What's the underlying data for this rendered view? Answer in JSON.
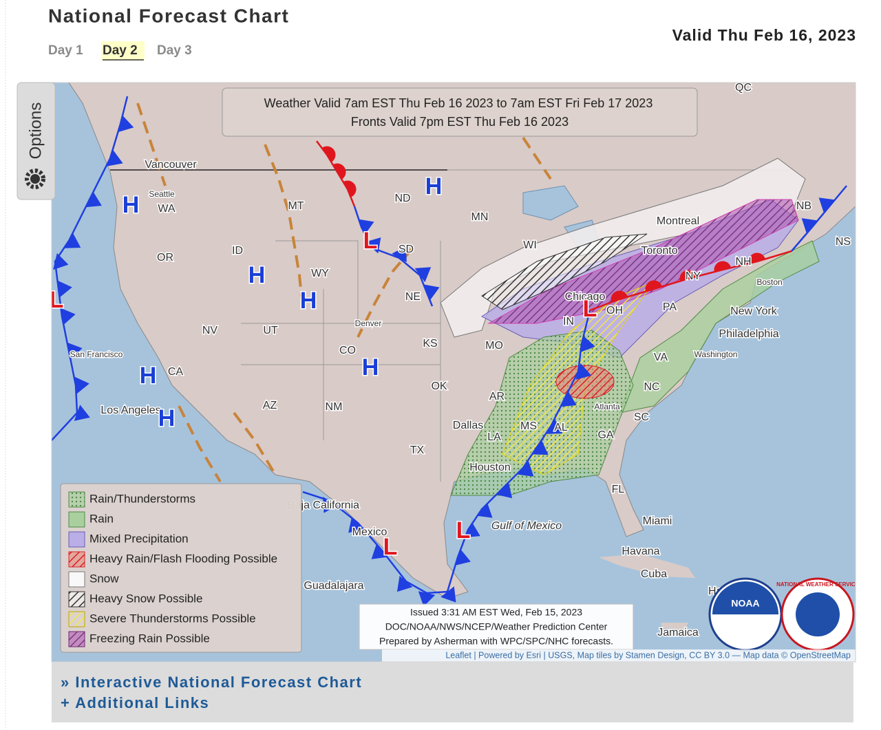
{
  "header": {
    "title": "National Forecast Chart",
    "tabs": [
      "Day 1",
      "Day 2",
      "Day 3"
    ],
    "valid": "Valid Thu Feb 16, 2023"
  },
  "sidebar": {
    "options": "Options"
  },
  "map": {
    "banner": [
      "Weather Valid 7am EST Thu Feb 16 2023 to 7am EST Fri Feb 17 2023",
      "Fronts Valid 7pm EST Thu Feb 16 2023"
    ],
    "labels": [
      "QC",
      "Vancouver",
      "Seattle",
      "WA",
      "OR",
      "ID",
      "MT",
      "ND",
      "SD",
      "MN",
      "WI",
      "NE",
      "WY",
      "NV",
      "UT",
      "CO",
      "Denver",
      "KS",
      "MO",
      "IN",
      "PA",
      "NY",
      "NH",
      "Boston",
      "New York",
      "Philadelphia",
      "Washington",
      "VA",
      "NC",
      "SC",
      "GA",
      "Atlanta",
      "AR",
      "OK",
      "TX",
      "Dallas",
      "LA",
      "Houston",
      "FL",
      "Miami",
      "Havana",
      "Cuba",
      "Jamaica",
      "NM",
      "AZ",
      "CA",
      "Los Angeles",
      "San Francisco",
      "Mexico",
      "Guadalajara",
      "Gulf of Mexico",
      "Montreal",
      "Toronto",
      "Chicago",
      "NB",
      "NS",
      "MS",
      "AL",
      "OH",
      "Baja California",
      "Haiti"
    ],
    "pressure_centers": [
      "H",
      "H",
      "H",
      "H",
      "H",
      "H",
      "H",
      "L",
      "L",
      "L",
      "L",
      "L"
    ],
    "legend": [
      "Rain/Thunderstorms",
      "Rain",
      "Mixed Precipitation",
      "Heavy Rain/Flash Flooding Possible",
      "Snow",
      "Heavy Snow Possible",
      "Severe Thunderstorms Possible",
      "Freezing Rain Possible"
    ],
    "issued": [
      "Issued 3:31 AM EST Wed, Feb 15, 2023",
      "DOC/NOAA/NWS/NCEP/Weather Prediction Center",
      "Prepared by Asherman with WPC/SPC/NHC forecasts."
    ],
    "attribution": "Leaflet | Powered by Esri | USGS, Map tiles by Stamen Design, CC BY 3.0 — Map data © OpenStreetMap",
    "logos": [
      "NOAA",
      "NATIONAL WEATHER SERVICE"
    ]
  },
  "links": [
    "» Interactive National Forecast Chart",
    "+ Additional Links"
  ]
}
